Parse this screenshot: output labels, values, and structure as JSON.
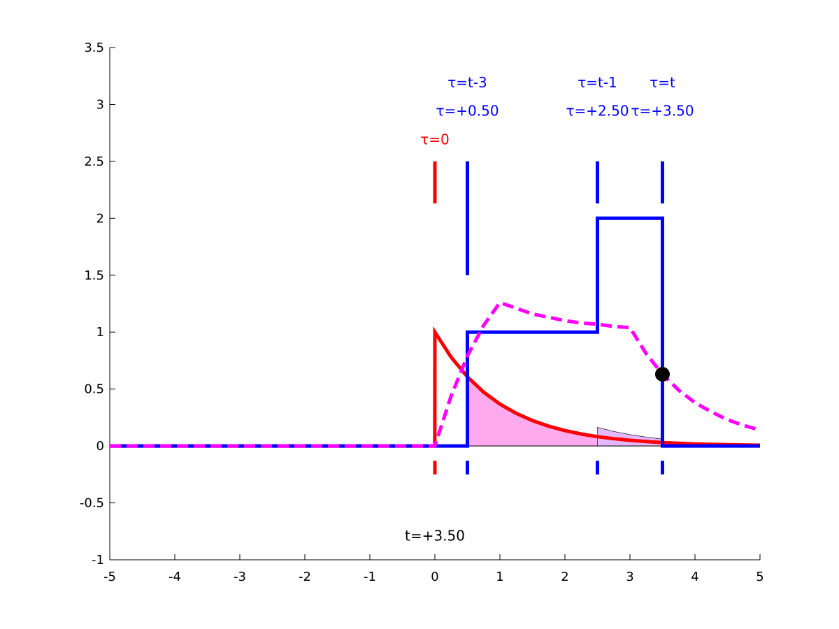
{
  "chart_data": {
    "type": "line",
    "title": "",
    "xlabel": "",
    "ylabel": "",
    "xlim": [
      -5,
      5
    ],
    "ylim": [
      -1,
      3.5
    ],
    "grid": false,
    "x_ticks": [
      {
        "value": -5,
        "label": "-5"
      },
      {
        "value": -4,
        "label": "-4"
      },
      {
        "value": -3,
        "label": "-3"
      },
      {
        "value": -2,
        "label": "-2"
      },
      {
        "value": -1,
        "label": "-1"
      },
      {
        "value": 0,
        "label": "0"
      },
      {
        "value": 1,
        "label": "1"
      },
      {
        "value": 2,
        "label": "2"
      },
      {
        "value": 3,
        "label": "3"
      },
      {
        "value": 4,
        "label": "4"
      },
      {
        "value": 5,
        "label": "5"
      }
    ],
    "y_ticks": [
      {
        "value": -1,
        "label": "-1"
      },
      {
        "value": -0.5,
        "label": "-0.5"
      },
      {
        "value": 0,
        "label": "0"
      },
      {
        "value": 0.5,
        "label": "0.5"
      },
      {
        "value": 1,
        "label": "1"
      },
      {
        "value": 1.5,
        "label": "1.5"
      },
      {
        "value": 2,
        "label": "2"
      },
      {
        "value": 2.5,
        "label": "2.5"
      },
      {
        "value": 3,
        "label": "3"
      },
      {
        "value": 3.5,
        "label": "3.5"
      }
    ],
    "series": [
      {
        "color": "#ff0000",
        "style": "solid",
        "x": [
          -5,
          -0.001,
          0,
          0.25,
          0.5,
          0.75,
          1,
          1.25,
          1.5,
          1.75,
          2,
          2.25,
          2.5,
          2.75,
          3,
          3.25,
          3.5,
          3.75,
          4,
          4.25,
          4.5,
          4.75,
          5
        ],
        "y": [
          0,
          0,
          1,
          0.779,
          0.607,
          0.472,
          0.368,
          0.287,
          0.223,
          0.174,
          0.135,
          0.105,
          0.082,
          0.064,
          0.05,
          0.039,
          0.03,
          0.024,
          0.018,
          0.014,
          0.011,
          0.009,
          0.007
        ]
      },
      {
        "color": "#0000ff",
        "style": "solid",
        "x": [
          -5,
          0.5,
          0.5,
          2.5,
          2.5,
          3.5,
          3.5,
          5
        ],
        "y": [
          0,
          0,
          1,
          1,
          2,
          2,
          0,
          0
        ]
      },
      {
        "color": "#ff00ff",
        "style": "dashed",
        "x": [
          -5,
          0,
          0.25,
          0.5,
          0.75,
          1,
          1.25,
          1.5,
          1.75,
          2,
          2.25,
          2.5,
          2.75,
          3,
          3.25,
          3.5,
          3.75,
          4,
          4.25,
          4.5,
          4.75,
          5
        ],
        "y": [
          0,
          0,
          0.44,
          0.79,
          1.06,
          1.26,
          1.21,
          1.16,
          1.13,
          1.1,
          1.08,
          1.07,
          1.05,
          1.04,
          0.81,
          0.63,
          0.49,
          0.38,
          0.3,
          0.23,
          0.18,
          0.14
        ]
      }
    ],
    "filled_areas": [
      {
        "color": "#ffaaee",
        "x": [
          0.5,
          0.75,
          1,
          1.25,
          1.5,
          1.75,
          2,
          2.25,
          2.5,
          2.75,
          3,
          3.25,
          3.5
        ],
        "y": [
          0.607,
          0.472,
          0.368,
          0.287,
          0.223,
          0.174,
          0.135,
          0.105,
          0.082,
          0.064,
          0.05,
          0.039,
          0.03
        ]
      },
      {
        "color": "#e3b8ff",
        "x": [
          2.5,
          2.75,
          3,
          3.25,
          3.5
        ],
        "y": [
          0.164,
          0.128,
          0.1,
          0.078,
          0.06
        ]
      }
    ],
    "point": {
      "x": 3.5,
      "y": 0.63,
      "color": "#000000"
    },
    "markers": [
      {
        "x": 0,
        "color": "#ff0000",
        "top": [
          2.13,
          2.5
        ],
        "bottom": [
          -0.25,
          -0.13
        ]
      },
      {
        "x": 0.5,
        "color": "#0000ff",
        "top": [
          1.5,
          2.5
        ],
        "bottom": [
          -0.25,
          -0.13
        ]
      },
      {
        "x": 2.5,
        "color": "#0000ff",
        "top": [
          2.13,
          2.5
        ],
        "bottom": [
          -0.25,
          -0.13
        ]
      },
      {
        "x": 3.5,
        "color": "#0000ff",
        "top": [
          2.13,
          2.5
        ],
        "bottom": [
          -0.25,
          -0.13
        ]
      }
    ],
    "annotations": [
      {
        "text": "τ=0",
        "x": 0,
        "y": 2.65,
        "color": "#ff0000"
      },
      {
        "text": "τ=t-3",
        "x": 0.5,
        "y": 3.15,
        "color": "#0000ff"
      },
      {
        "text": "τ=+0.50",
        "x": 0.5,
        "y": 2.9,
        "color": "#0000ff"
      },
      {
        "text": "τ=t-1",
        "x": 2.5,
        "y": 3.15,
        "color": "#0000ff"
      },
      {
        "text": "τ=+2.50",
        "x": 2.5,
        "y": 2.9,
        "color": "#0000ff"
      },
      {
        "text": "τ=t",
        "x": 3.5,
        "y": 3.15,
        "color": "#0000ff"
      },
      {
        "text": "τ=+3.50",
        "x": 3.5,
        "y": 2.9,
        "color": "#0000ff"
      },
      {
        "text": "t=+3.50",
        "x": 0,
        "y": -0.83,
        "color": "#000000"
      }
    ]
  }
}
